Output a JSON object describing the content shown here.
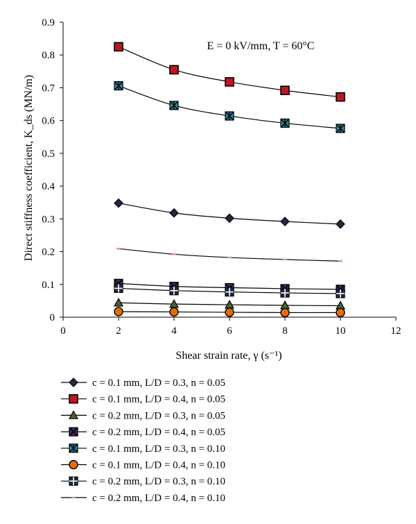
{
  "chart_data": {
    "type": "line",
    "xlabel": "Shear strain rate, γ (s⁻¹)",
    "ylabel": "Direct stiffness coefficient, K_ds (MN/m)",
    "annotation": "E = 0 kV/mm, T = 60°C",
    "xlim": [
      0,
      12
    ],
    "ylim": [
      0,
      0.9
    ],
    "x_ticks": [
      "0",
      "2",
      "4",
      "6",
      "8",
      "10",
      "12"
    ],
    "y_ticks": [
      "0",
      "0.1",
      "0.2",
      "0.3",
      "0.4",
      "0.5",
      "0.6",
      "0.7",
      "0.8",
      "0.9"
    ],
    "grid": false,
    "legend_position": "bottom",
    "x": [
      2,
      4,
      6,
      8,
      10
    ],
    "series": [
      {
        "name": "c = 0.1 mm, L/D = 0.3, n = 0.05",
        "marker": "diamond",
        "fill": "#1f2a44",
        "values": [
          0.348,
          0.318,
          0.302,
          0.292,
          0.284
        ]
      },
      {
        "name": "c = 0.1 mm, L/D = 0.4, n = 0.05",
        "marker": "square",
        "fill": "#c0171f",
        "values": [
          0.825,
          0.755,
          0.718,
          0.692,
          0.672
        ]
      },
      {
        "name": "c = 0.2 mm, L/D = 0.3, n = 0.05",
        "marker": "triangle",
        "fill": "#4f6228",
        "values": [
          0.044,
          0.04,
          0.038,
          0.036,
          0.035
        ]
      },
      {
        "name": "c = 0.2 mm, L/D = 0.4, n = 0.05",
        "marker": "xsquare",
        "fill": "#3b2a5c",
        "values": [
          0.103,
          0.094,
          0.09,
          0.087,
          0.085
        ]
      },
      {
        "name": "c = 0.1 mm, L/D = 0.3, n = 0.10",
        "marker": "asterisk-square",
        "fill": "#31849b",
        "values": [
          0.706,
          0.646,
          0.614,
          0.592,
          0.576
        ]
      },
      {
        "name": "c = 0.1 mm, L/D = 0.4, n = 0.10",
        "marker": "circle",
        "fill": "#e36c09",
        "values": [
          0.017,
          0.016,
          0.015,
          0.014,
          0.014
        ]
      },
      {
        "name": "c = 0.2 mm, L/D = 0.3, n = 0.10",
        "marker": "plus-square",
        "fill": "#1f2a44",
        "values": [
          0.088,
          0.081,
          0.077,
          0.074,
          0.072
        ]
      },
      {
        "name": "c = 0.2 mm, L/D = 0.4, n = 0.10",
        "marker": "dash",
        "fill": "#d99694",
        "values": [
          0.209,
          0.192,
          0.182,
          0.176,
          0.171
        ]
      }
    ]
  }
}
